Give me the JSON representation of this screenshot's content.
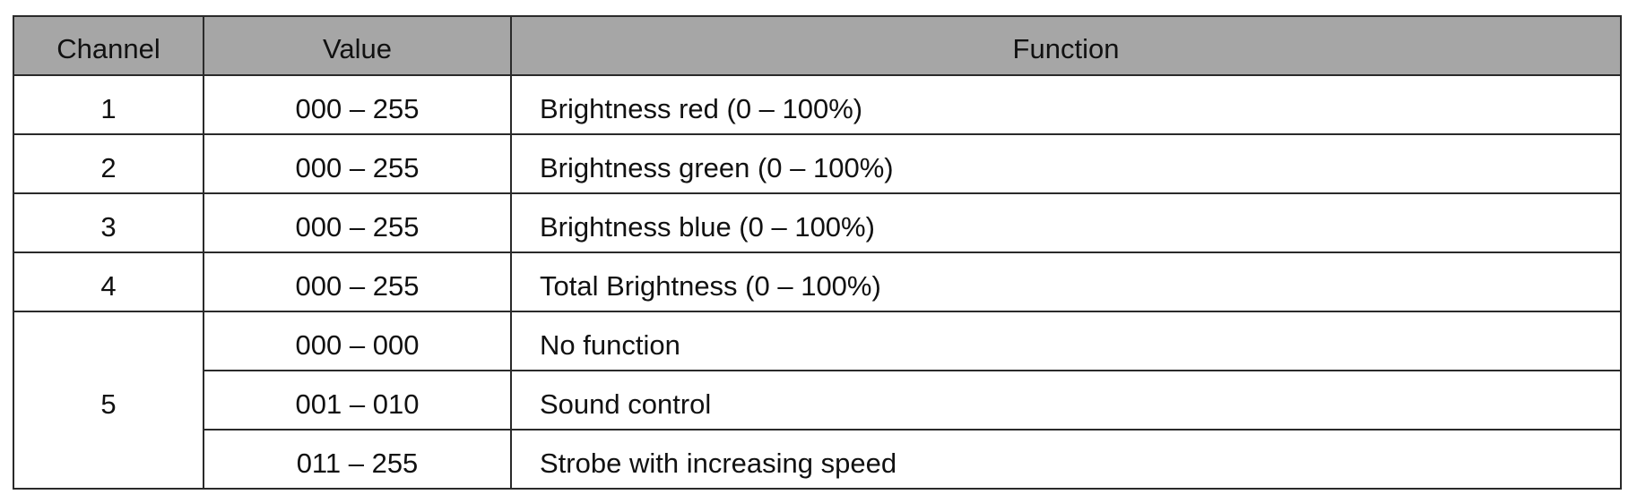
{
  "table": {
    "headers": {
      "channel": "Channel",
      "value": "Value",
      "function": "Function"
    },
    "rows": [
      {
        "channel": "1",
        "value": "000 – 255",
        "function": "Brightness red (0 – 100%)"
      },
      {
        "channel": "2",
        "value": "000 – 255",
        "function": "Brightness green (0 – 100%)"
      },
      {
        "channel": "3",
        "value": "000 – 255",
        "function": "Brightness blue (0 – 100%)"
      },
      {
        "channel": "4",
        "value": "000 – 255",
        "function": "Total Brightness (0 – 100%)"
      }
    ],
    "channel5": {
      "channel": "5",
      "rows": [
        {
          "value": "000 – 000",
          "function": "No function"
        },
        {
          "value": "001 – 010",
          "function": "Sound control"
        },
        {
          "value": "011 – 255",
          "function": "Strobe with increasing speed"
        }
      ]
    }
  },
  "colors": {
    "header_background": "#a6a6a6",
    "border": "#2a2a2a"
  }
}
